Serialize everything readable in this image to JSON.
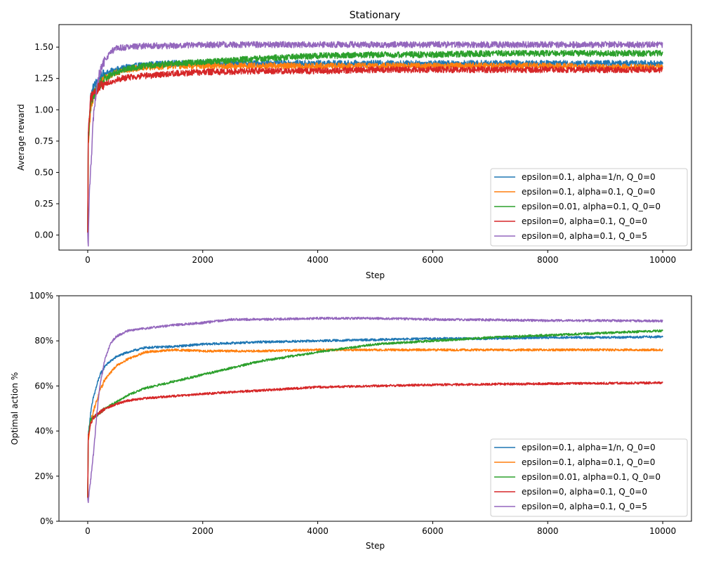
{
  "figure": {
    "title": "Stationary"
  },
  "chart_data": [
    {
      "type": "line",
      "title": "Stationary",
      "xlabel": "Step",
      "ylabel": "Average reward",
      "xlim": [
        -500,
        10500
      ],
      "ylim": [
        -0.12,
        1.68
      ],
      "xticks": [
        0,
        2000,
        4000,
        6000,
        8000,
        10000
      ],
      "xtick_labels": [
        "0",
        "2000",
        "4000",
        "6000",
        "8000",
        "10000"
      ],
      "yticks": [
        0,
        0.25,
        0.5,
        0.75,
        1.0,
        1.25,
        1.5
      ],
      "ytick_labels": [
        "0.00",
        "0.25",
        "0.50",
        "0.75",
        "1.00",
        "1.25",
        "1.50"
      ],
      "grid": false,
      "legend_position": "lower-right",
      "noise_level": 0.025,
      "series": [
        {
          "name": "epsilon=0.1, alpha=1/n, Q_0=0",
          "color": "#1f77b4",
          "x": [
            0,
            10,
            50,
            100,
            200,
            300,
            500,
            700,
            1000,
            1500,
            2000,
            3000,
            4000,
            5000,
            6000,
            7000,
            8000,
            9000,
            10000
          ],
          "y": [
            0.0,
            0.8,
            1.1,
            1.18,
            1.25,
            1.29,
            1.32,
            1.34,
            1.36,
            1.37,
            1.37,
            1.37,
            1.37,
            1.37,
            1.37,
            1.37,
            1.37,
            1.37,
            1.37
          ]
        },
        {
          "name": "epsilon=0.1, alpha=0.1, Q_0=0",
          "color": "#ff7f0e",
          "x": [
            0,
            10,
            50,
            100,
            200,
            300,
            500,
            700,
            1000,
            1500,
            2000,
            3000,
            4000,
            5000,
            6000,
            7000,
            8000,
            9000,
            10000
          ],
          "y": [
            0.0,
            0.7,
            1.02,
            1.1,
            1.2,
            1.25,
            1.3,
            1.32,
            1.34,
            1.35,
            1.35,
            1.35,
            1.35,
            1.35,
            1.35,
            1.35,
            1.35,
            1.34,
            1.34
          ]
        },
        {
          "name": "epsilon=0.01, alpha=0.1, Q_0=0",
          "color": "#2ca02c",
          "x": [
            0,
            10,
            50,
            100,
            200,
            300,
            500,
            700,
            1000,
            1500,
            2000,
            3000,
            4000,
            5000,
            6000,
            7000,
            8000,
            9000,
            10000
          ],
          "y": [
            0.0,
            0.75,
            1.05,
            1.12,
            1.2,
            1.25,
            1.3,
            1.33,
            1.35,
            1.37,
            1.38,
            1.41,
            1.43,
            1.44,
            1.44,
            1.45,
            1.45,
            1.45,
            1.45
          ]
        },
        {
          "name": "epsilon=0, alpha=0.1, Q_0=0",
          "color": "#d62728",
          "x": [
            0,
            10,
            50,
            100,
            200,
            300,
            500,
            700,
            1000,
            1500,
            2000,
            3000,
            4000,
            5000,
            6000,
            7000,
            8000,
            9000,
            10000
          ],
          "y": [
            0.0,
            0.8,
            1.08,
            1.13,
            1.18,
            1.21,
            1.24,
            1.26,
            1.27,
            1.29,
            1.3,
            1.31,
            1.31,
            1.32,
            1.32,
            1.32,
            1.32,
            1.32,
            1.32
          ]
        },
        {
          "name": "epsilon=0, alpha=0.1, Q_0=5",
          "color": "#9467bd",
          "x": [
            0,
            10,
            25,
            50,
            100,
            150,
            200,
            300,
            400,
            500,
            700,
            1000,
            1500,
            2000,
            3000,
            4000,
            5000,
            6000,
            7000,
            8000,
            9000,
            10000
          ],
          "y": [
            0.0,
            -0.1,
            0.3,
            0.5,
            0.95,
            1.15,
            1.28,
            1.4,
            1.46,
            1.49,
            1.5,
            1.51,
            1.51,
            1.52,
            1.52,
            1.52,
            1.52,
            1.52,
            1.52,
            1.52,
            1.52,
            1.52
          ]
        }
      ]
    },
    {
      "type": "line",
      "title": "",
      "xlabel": "Step",
      "ylabel": "Optimal action %",
      "xlim": [
        -500,
        10500
      ],
      "ylim": [
        0,
        1
      ],
      "xticks": [
        0,
        2000,
        4000,
        6000,
        8000,
        10000
      ],
      "xtick_labels": [
        "0",
        "2000",
        "4000",
        "6000",
        "8000",
        "10000"
      ],
      "yticks": [
        0,
        0.2,
        0.4,
        0.6,
        0.8,
        1.0
      ],
      "ytick_labels": [
        "0%",
        "20%",
        "40%",
        "60%",
        "80%",
        "100%"
      ],
      "grid": false,
      "legend_position": "lower-right",
      "noise_level": 0.005,
      "series": [
        {
          "name": "epsilon=0.1, alpha=1/n, Q_0=0",
          "color": "#1f77b4",
          "x": [
            0,
            10,
            50,
            100,
            200,
            300,
            500,
            700,
            1000,
            1500,
            2000,
            3000,
            4000,
            5000,
            6000,
            7000,
            8000,
            9000,
            10000
          ],
          "y": [
            0.1,
            0.38,
            0.48,
            0.55,
            0.64,
            0.69,
            0.73,
            0.75,
            0.77,
            0.775,
            0.785,
            0.795,
            0.8,
            0.805,
            0.81,
            0.81,
            0.815,
            0.815,
            0.818
          ]
        },
        {
          "name": "epsilon=0.1, alpha=0.1, Q_0=0",
          "color": "#ff7f0e",
          "x": [
            0,
            10,
            50,
            100,
            200,
            300,
            500,
            700,
            1000,
            1500,
            2000,
            3000,
            4000,
            5000,
            6000,
            7000,
            8000,
            9000,
            10000
          ],
          "y": [
            0.1,
            0.36,
            0.44,
            0.49,
            0.57,
            0.63,
            0.69,
            0.72,
            0.75,
            0.76,
            0.755,
            0.755,
            0.76,
            0.76,
            0.76,
            0.76,
            0.76,
            0.76,
            0.76
          ]
        },
        {
          "name": "epsilon=0.01, alpha=0.1, Q_0=0",
          "color": "#2ca02c",
          "x": [
            0,
            10,
            50,
            100,
            200,
            300,
            500,
            700,
            1000,
            1500,
            2000,
            3000,
            4000,
            5000,
            6000,
            7000,
            8000,
            9000,
            10000
          ],
          "y": [
            0.1,
            0.38,
            0.45,
            0.46,
            0.48,
            0.5,
            0.53,
            0.56,
            0.59,
            0.62,
            0.65,
            0.71,
            0.75,
            0.785,
            0.8,
            0.815,
            0.825,
            0.835,
            0.845
          ]
        },
        {
          "name": "epsilon=0, alpha=0.1, Q_0=0",
          "color": "#d62728",
          "x": [
            0,
            10,
            50,
            100,
            200,
            300,
            500,
            700,
            1000,
            1500,
            2000,
            3000,
            4000,
            5000,
            6000,
            7000,
            8000,
            9000,
            10000
          ],
          "y": [
            0.1,
            0.38,
            0.43,
            0.46,
            0.48,
            0.5,
            0.52,
            0.535,
            0.545,
            0.555,
            0.565,
            0.58,
            0.595,
            0.6,
            0.605,
            0.608,
            0.61,
            0.612,
            0.614
          ]
        },
        {
          "name": "epsilon=0, alpha=0.1, Q_0=5",
          "color": "#9467bd",
          "x": [
            0,
            10,
            25,
            50,
            100,
            150,
            200,
            300,
            400,
            500,
            700,
            1000,
            1500,
            2000,
            2500,
            3000,
            4000,
            5000,
            6000,
            7000,
            8000,
            9000,
            10000
          ],
          "y": [
            0.1,
            0.09,
            0.13,
            0.18,
            0.3,
            0.45,
            0.58,
            0.72,
            0.79,
            0.82,
            0.845,
            0.855,
            0.87,
            0.88,
            0.895,
            0.895,
            0.9,
            0.9,
            0.895,
            0.893,
            0.89,
            0.89,
            0.888
          ]
        }
      ]
    }
  ]
}
